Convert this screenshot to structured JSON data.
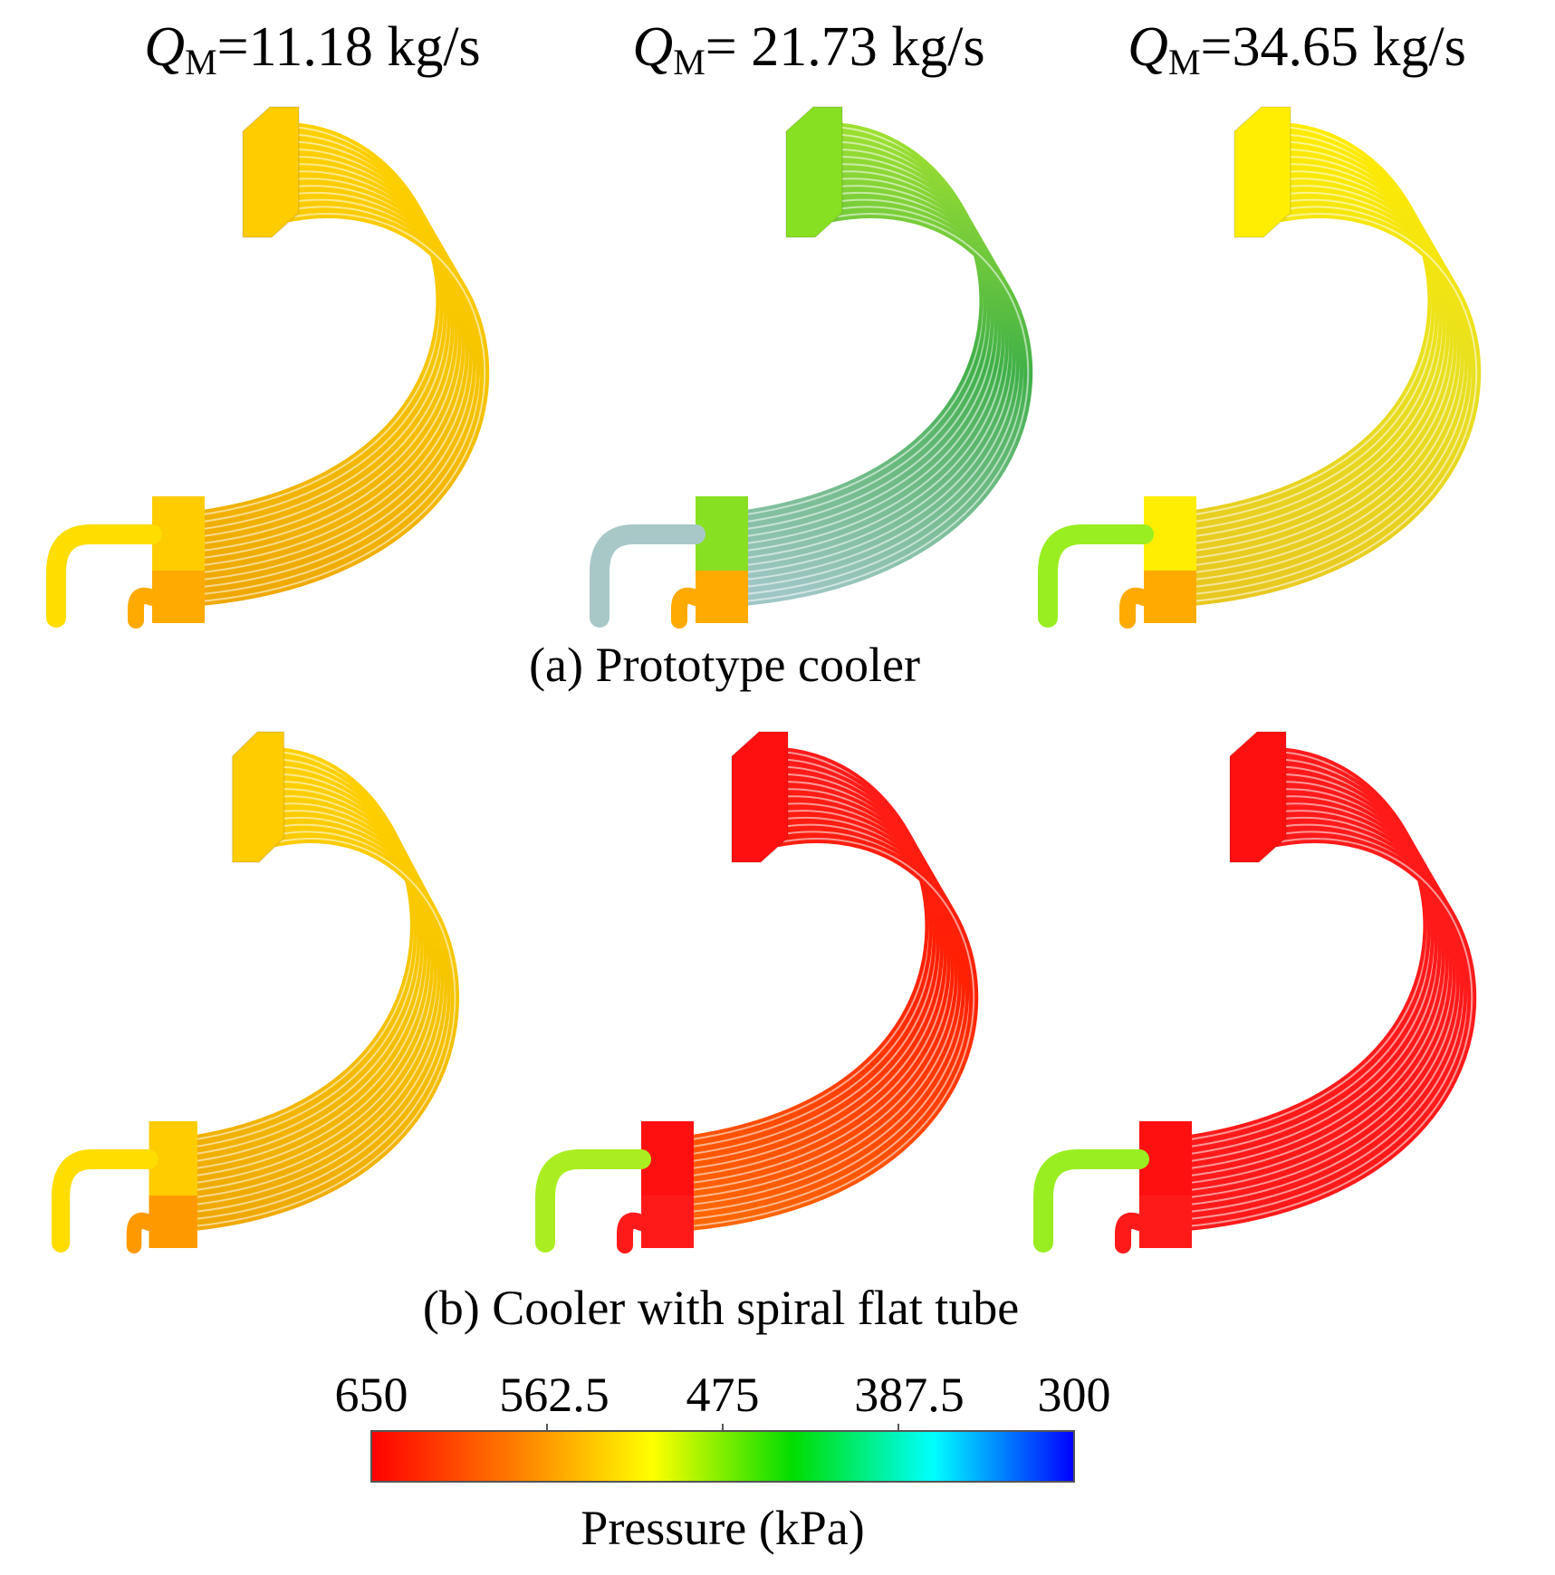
{
  "columns": [
    {
      "symbol": "Q",
      "subscript": "M",
      "value_text": "=11.18 kg/s"
    },
    {
      "symbol": "Q",
      "subscript": "M",
      "value_text": "= 21.73 kg/s"
    },
    {
      "symbol": "Q",
      "subscript": "M",
      "value_text": "=34.65 kg/s"
    }
  ],
  "rows": [
    {
      "caption": "(a) Prototype cooler"
    },
    {
      "caption": "(b) Cooler with spiral flat tube"
    }
  ],
  "colorbar": {
    "ticks": [
      "650",
      "562.5",
      "475",
      "387.5",
      "300"
    ],
    "label": "Pressure (kPa)",
    "stops": [
      "#ff0000",
      "#ff7a00",
      "#ffff00",
      "#00dd00",
      "#00ffff",
      "#0000ff"
    ]
  },
  "panel_colors": {
    "a1": {
      "header": "#ffcc00",
      "tube_start": "#ffd000",
      "tube_mid": "#f5c400",
      "tube_end": "#f0a800",
      "inlet_pipe": "#ffdd00",
      "outlet": "#ffaa00"
    },
    "a2": {
      "header": "#88e022",
      "tube_start": "#9ee030",
      "tube_mid": "#3fb048",
      "tube_end": "#9ec6c4",
      "inlet_pipe": "#a8c8c8",
      "outlet": "#ffaa00"
    },
    "a3": {
      "header": "#ffee00",
      "tube_start": "#ffea00",
      "tube_mid": "#e8e020",
      "tube_end": "#e8c820",
      "inlet_pipe": "#99ee22",
      "outlet": "#ffaa00"
    },
    "b1": {
      "header": "#ffcc00",
      "tube_start": "#ffd000",
      "tube_mid": "#f5c400",
      "tube_end": "#f0a800",
      "inlet_pipe": "#ffdd00",
      "outlet": "#ff9900"
    },
    "b2": {
      "header": "#ff1010",
      "tube_start": "#ff1a1a",
      "tube_mid": "#ff2200",
      "tube_end": "#ff6600",
      "inlet_pipe": "#aaee22",
      "outlet": "#ff1a1a"
    },
    "b3": {
      "header": "#ff1010",
      "tube_start": "#ff1a1a",
      "tube_mid": "#ff1a1a",
      "tube_end": "#ff1a1a",
      "inlet_pipe": "#99ee22",
      "outlet": "#ff1a1a"
    }
  }
}
